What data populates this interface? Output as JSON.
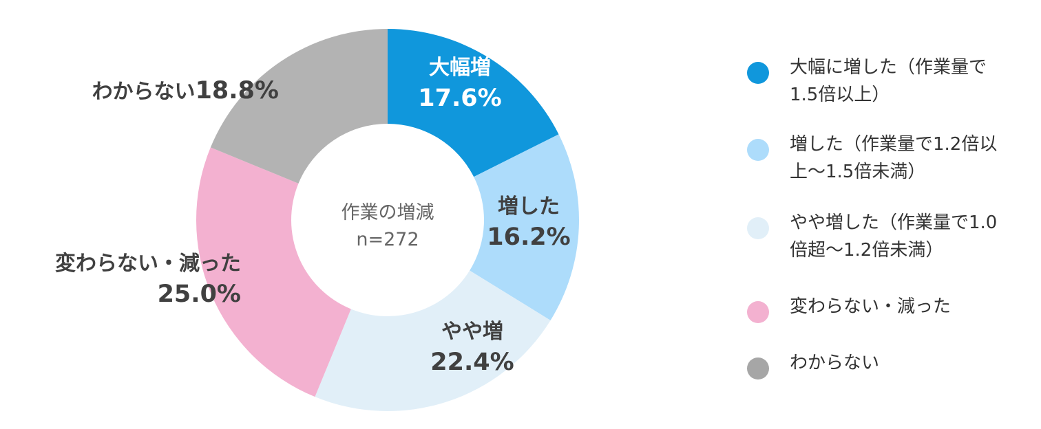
{
  "chart_data": {
    "type": "pie",
    "donut": true,
    "center_label": {
      "line1": "作業の増減",
      "line2": "n=272"
    },
    "start_angle_deg": 0,
    "direction": "clockwise",
    "slices": [
      {
        "key": "large_increase",
        "label": "大幅増",
        "value": 17.6,
        "value_text": "17.6%",
        "color": "#1097dc",
        "label_color": "#ffffff",
        "legend": "大幅に増した（作業量で\n1.5倍以上）"
      },
      {
        "key": "increase",
        "label": "増した",
        "value": 16.2,
        "value_text": "16.2%",
        "color": "#addcfb",
        "label_color": "#404040",
        "legend": "増した（作業量で1.2倍以\n上〜1.5倍未満）"
      },
      {
        "key": "slight_increase",
        "label": "やや増",
        "value": 22.4,
        "value_text": "22.4%",
        "color": "#e1eff8",
        "label_color": "#404040",
        "legend": "やや増した（作業量で1.0\n倍超〜1.2倍未満）"
      },
      {
        "key": "same_or_decrease",
        "label": "変わらない・減った",
        "value": 25.0,
        "value_text": "25.0%",
        "color": "#f3b1d0",
        "label_color": "#404040",
        "legend": "変わらない・減った"
      },
      {
        "key": "unknown",
        "label": "わからない",
        "value": 18.8,
        "value_text": "18.8%",
        "color": "#b3b3b3",
        "label_color": "#404040",
        "legend": "わからない"
      }
    ],
    "legend_position": "right",
    "legend_dot_colors": [
      "#1097dc",
      "#addcfb",
      "#e1eff8",
      "#f3b1d0",
      "#a6a6a6"
    ]
  }
}
